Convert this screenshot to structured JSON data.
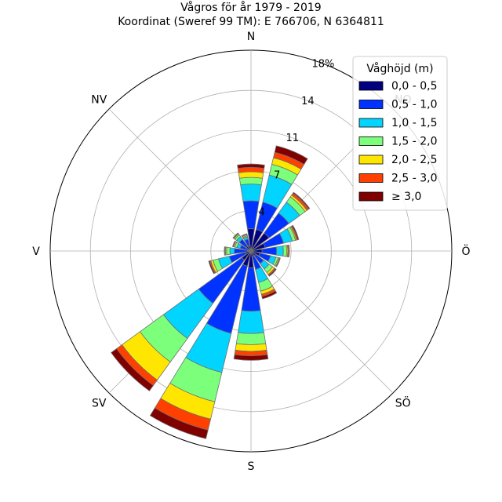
{
  "title": "Vågros för år 1979 - 2019",
  "subtitle": "Koordinat (Sweref 99 TM): E 766706, N 6364811",
  "chart_data": {
    "type": "windrose",
    "directions": [
      "N",
      "NO",
      "Ö",
      "SÖ",
      "S",
      "SV",
      "V",
      "NV"
    ],
    "compass_labels": [
      "N",
      "NO",
      "Ö",
      "SÖ",
      "S",
      "SV",
      "V",
      "NV"
    ],
    "radial_ticks": [
      "4",
      "7",
      "11",
      "14",
      "18%"
    ],
    "radial_tick_values": [
      3.6,
      7.2,
      10.8,
      14.4,
      18
    ],
    "rmax": 18,
    "sector_count": 16,
    "sector_angles_deg": [
      0,
      22.5,
      45,
      67.5,
      90,
      112.5,
      135,
      157.5,
      180,
      202.5,
      225,
      247.5,
      270,
      292.5,
      315,
      337.5
    ],
    "legend_title": "Våghöjd (m)",
    "legend_location": "top-right",
    "series": [
      {
        "name": "0,0 - 0,5",
        "color": "#000080",
        "values": [
          2.0,
          2.0,
          2.0,
          1.3,
          1.0,
          0.8,
          0.5,
          0.5,
          1.5,
          1.4,
          1.0,
          0.5,
          0.3,
          0.3,
          0.5,
          0.5
        ]
      },
      {
        "name": "0,5 - 1,0",
        "color": "#0033ff",
        "values": [
          2.5,
          2.5,
          2.2,
          1.7,
          1.3,
          1.0,
          0.9,
          1.2,
          3.9,
          6.2,
          4.8,
          1.5,
          1.2,
          0.7,
          0.8,
          0.6
        ]
      },
      {
        "name": "1,0 - 1,5",
        "color": "#00d4ff",
        "values": [
          1.5,
          2.5,
          1.2,
          0.8,
          0.6,
          0.5,
          0.6,
          1.2,
          2.0,
          3.6,
          3.9,
          1.0,
          0.4,
          0.3,
          0.3,
          0.2
        ]
      },
      {
        "name": "1,5 - 2,0",
        "color": "#7cff7a",
        "values": [
          0.6,
          1.0,
          0.6,
          0.3,
          0.3,
          0.2,
          0.4,
          0.8,
          1.0,
          2.7,
          2.6,
          0.5,
          0.3,
          0.2,
          0.2,
          0.1
        ]
      },
      {
        "name": "2,0 - 2,5",
        "color": "#ffe600",
        "values": [
          0.5,
          0.6,
          0.2,
          0.1,
          0.1,
          0.1,
          0.2,
          0.3,
          0.6,
          1.6,
          2.0,
          0.2,
          0.1,
          0.1,
          0.1,
          0.1
        ]
      },
      {
        "name": "2,5 - 3,0",
        "color": "#ff4000",
        "values": [
          0.4,
          0.5,
          0.2,
          0.1,
          0.1,
          0.05,
          0.1,
          0.2,
          0.4,
          1.0,
          0.6,
          0.1,
          0.05,
          0.05,
          0.05,
          0.05
        ]
      },
      {
        "name": "≥ 3,0",
        "color": "#800000",
        "values": [
          0.3,
          0.6,
          0.1,
          0.1,
          0.05,
          0.05,
          0.1,
          0.2,
          0.4,
          0.8,
          0.6,
          0.1,
          0.05,
          0.05,
          0.05,
          0.05
        ]
      }
    ],
    "grid": true
  }
}
